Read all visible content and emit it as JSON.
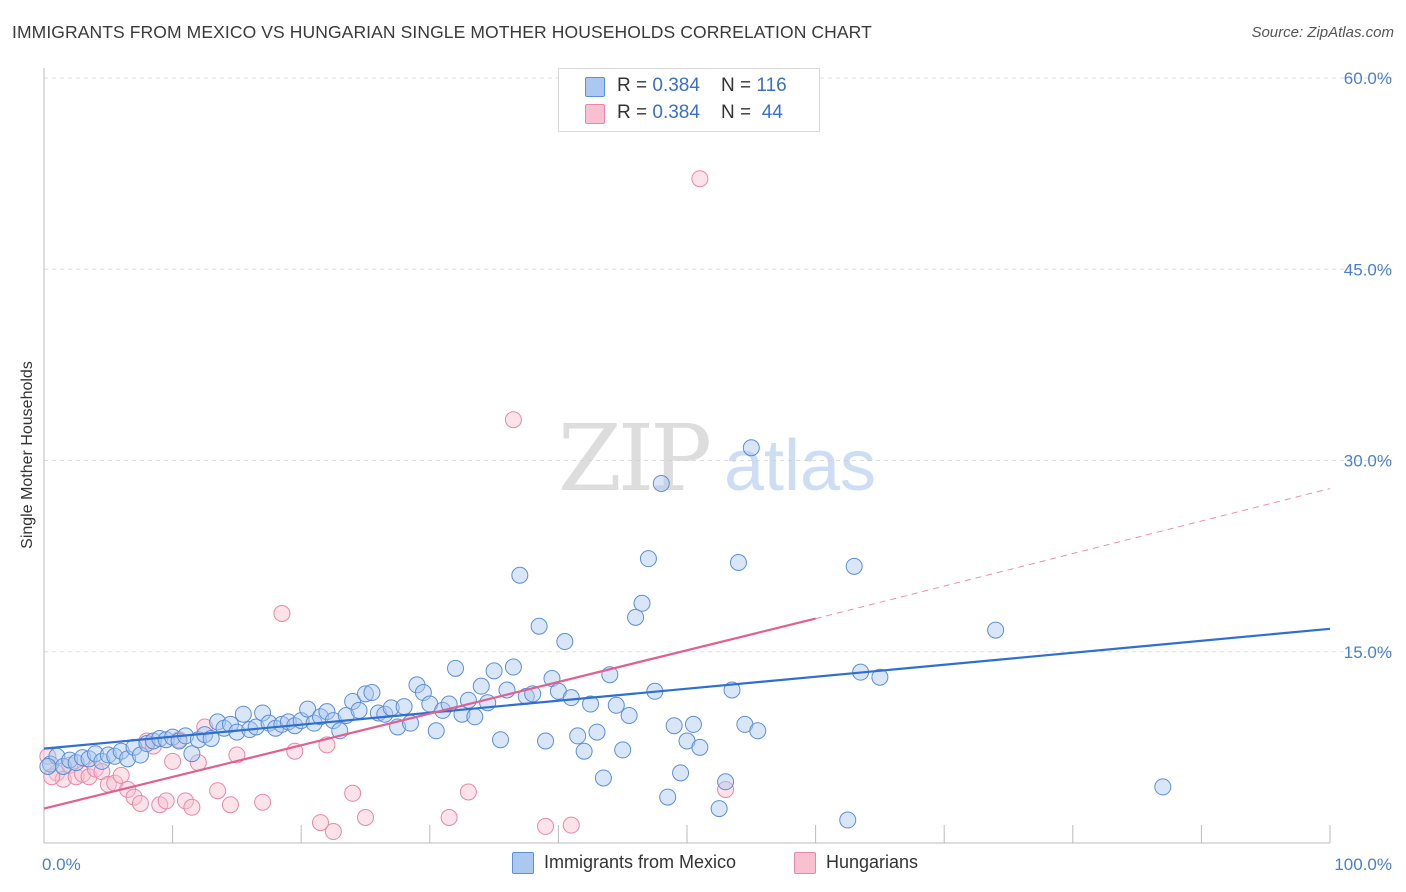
{
  "title": "IMMIGRANTS FROM MEXICO VS HUNGARIAN SINGLE MOTHER HOUSEHOLDS CORRELATION CHART",
  "source": "Source: ZipAtlas.com",
  "watermark": {
    "zip": "ZIP",
    "atlas": "atlas"
  },
  "legend": {
    "rows": [
      {
        "r_label": "R = ",
        "r_value": "0.384",
        "n_label": "N = ",
        "n_value": "116"
      },
      {
        "r_label": "R = ",
        "r_value": "0.384",
        "n_label": "N = ",
        "n_value": " 44"
      }
    ]
  },
  "colors": {
    "mexico_fill": "#aac8f0",
    "mexico_stroke": "#5b8fd8",
    "mexico_line": "#2f6fd0",
    "hungarian_fill": "#f8c0d0",
    "hungarian_stroke": "#e888a8",
    "hungarian_line": "#e06090",
    "grid": "#dddddd",
    "tick_label": "#4a7fd0"
  },
  "chart_data": {
    "type": "scatter",
    "title": "IMMIGRANTS FROM MEXICO VS HUNGARIAN SINGLE MOTHER HOUSEHOLDS CORRELATION CHART",
    "xlabel": "",
    "ylabel": "Single Mother Households",
    "xlim": [
      0,
      100
    ],
    "ylim": [
      0,
      60
    ],
    "x_ticks": [
      "0.0%",
      "100.0%"
    ],
    "y_ticks": [
      {
        "value": 15,
        "label": "15.0%"
      },
      {
        "value": 30,
        "label": "30.0%"
      },
      {
        "value": 45,
        "label": "45.0%"
      },
      {
        "value": 60,
        "label": "60.0%"
      }
    ],
    "grid": true,
    "legend_position": "top-center",
    "series": [
      {
        "name": "Immigrants from Mexico",
        "points": [
          [
            0.5,
            6.2
          ],
          [
            1.0,
            6.8
          ],
          [
            1.5,
            6.0
          ],
          [
            2.0,
            6.5
          ],
          [
            2.5,
            6.3
          ],
          [
            3.0,
            6.7
          ],
          [
            3.5,
            6.6
          ],
          [
            4.0,
            7.0
          ],
          [
            4.5,
            6.4
          ],
          [
            5.0,
            6.9
          ],
          [
            5.5,
            6.8
          ],
          [
            6.0,
            7.2
          ],
          [
            6.5,
            6.6
          ],
          [
            7.0,
            7.5
          ],
          [
            7.5,
            6.9
          ],
          [
            8.0,
            7.8
          ],
          [
            8.5,
            8.0
          ],
          [
            9.0,
            8.2
          ],
          [
            9.5,
            8.1
          ],
          [
            10.0,
            8.3
          ],
          [
            10.5,
            8.0
          ],
          [
            11.0,
            8.4
          ],
          [
            11.5,
            7.0
          ],
          [
            12.0,
            8.1
          ],
          [
            12.5,
            8.5
          ],
          [
            13.0,
            8.2
          ],
          [
            13.5,
            9.5
          ],
          [
            14.0,
            9.0
          ],
          [
            14.5,
            9.3
          ],
          [
            15.0,
            8.7
          ],
          [
            15.5,
            10.1
          ],
          [
            16.0,
            8.9
          ],
          [
            16.5,
            9.1
          ],
          [
            17.0,
            10.2
          ],
          [
            17.5,
            9.4
          ],
          [
            18.0,
            9.0
          ],
          [
            18.5,
            9.3
          ],
          [
            19.0,
            9.5
          ],
          [
            19.5,
            9.2
          ],
          [
            20.0,
            9.6
          ],
          [
            20.5,
            10.5
          ],
          [
            21.0,
            9.4
          ],
          [
            21.5,
            9.9
          ],
          [
            22.0,
            10.3
          ],
          [
            22.5,
            9.6
          ],
          [
            23.0,
            8.8
          ],
          [
            23.5,
            10.0
          ],
          [
            24.0,
            11.1
          ],
          [
            24.5,
            10.4
          ],
          [
            25.0,
            11.7
          ],
          [
            25.5,
            11.8
          ],
          [
            26.0,
            10.2
          ],
          [
            26.5,
            10.1
          ],
          [
            27.0,
            10.6
          ],
          [
            27.5,
            9.1
          ],
          [
            28.0,
            10.7
          ],
          [
            28.5,
            9.4
          ],
          [
            29.0,
            12.4
          ],
          [
            29.5,
            11.8
          ],
          [
            30.0,
            10.9
          ],
          [
            30.5,
            8.8
          ],
          [
            31.0,
            10.4
          ],
          [
            31.5,
            10.9
          ],
          [
            32.0,
            13.7
          ],
          [
            32.5,
            10.1
          ],
          [
            33.0,
            11.2
          ],
          [
            33.5,
            9.9
          ],
          [
            34.0,
            12.3
          ],
          [
            34.5,
            11.0
          ],
          [
            35.0,
            13.5
          ],
          [
            35.5,
            8.1
          ],
          [
            36.0,
            12.0
          ],
          [
            36.5,
            13.8
          ],
          [
            37.0,
            21.0
          ],
          [
            37.5,
            11.5
          ],
          [
            38.0,
            11.7
          ],
          [
            38.5,
            17.0
          ],
          [
            39.0,
            8.0
          ],
          [
            39.5,
            12.9
          ],
          [
            40.0,
            11.9
          ],
          [
            40.5,
            15.8
          ],
          [
            41.0,
            11.4
          ],
          [
            41.5,
            8.4
          ],
          [
            42.0,
            7.2
          ],
          [
            42.5,
            10.9
          ],
          [
            43.0,
            8.7
          ],
          [
            43.5,
            5.1
          ],
          [
            44.0,
            13.2
          ],
          [
            44.5,
            10.8
          ],
          [
            45.0,
            7.3
          ],
          [
            45.5,
            10.0
          ],
          [
            46.0,
            17.7
          ],
          [
            46.5,
            18.8
          ],
          [
            47.0,
            22.3
          ],
          [
            47.5,
            11.9
          ],
          [
            48.0,
            28.2
          ],
          [
            48.5,
            3.6
          ],
          [
            49.0,
            9.2
          ],
          [
            49.5,
            5.5
          ],
          [
            50.0,
            8.0
          ],
          [
            50.5,
            9.3
          ],
          [
            51.0,
            7.5
          ],
          [
            52.5,
            2.7
          ],
          [
            53.0,
            4.8
          ],
          [
            53.5,
            12.0
          ],
          [
            54.0,
            22.0
          ],
          [
            54.5,
            9.3
          ],
          [
            55.0,
            31.0
          ],
          [
            55.5,
            8.8
          ],
          [
            62.5,
            1.8
          ],
          [
            63.0,
            21.7
          ],
          [
            63.5,
            13.4
          ],
          [
            65.0,
            13.0
          ],
          [
            74.0,
            16.7
          ],
          [
            87.0,
            4.4
          ],
          [
            0.3,
            6.0
          ]
        ],
        "trend": {
          "x": [
            0,
            100
          ],
          "y": [
            7.4,
            16.8
          ]
        }
      },
      {
        "name": "Hungarians",
        "points": [
          [
            0.3,
            6.8
          ],
          [
            1.0,
            5.5
          ],
          [
            1.5,
            5.0
          ],
          [
            2.0,
            6.1
          ],
          [
            2.5,
            5.2
          ],
          [
            3.0,
            5.4
          ],
          [
            3.5,
            5.2
          ],
          [
            4.0,
            5.8
          ],
          [
            4.5,
            5.6
          ],
          [
            5.0,
            4.6
          ],
          [
            5.5,
            4.7
          ],
          [
            6.0,
            5.3
          ],
          [
            6.5,
            4.2
          ],
          [
            7.0,
            3.6
          ],
          [
            7.5,
            3.1
          ],
          [
            8.0,
            8.0
          ],
          [
            8.5,
            7.6
          ],
          [
            9.0,
            3.0
          ],
          [
            9.5,
            3.3
          ],
          [
            10.0,
            6.4
          ],
          [
            10.5,
            8.1
          ],
          [
            11.0,
            3.3
          ],
          [
            11.5,
            2.8
          ],
          [
            12.0,
            6.3
          ],
          [
            12.5,
            9.1
          ],
          [
            13.5,
            4.1
          ],
          [
            14.5,
            3.0
          ],
          [
            15.0,
            6.9
          ],
          [
            17.0,
            3.2
          ],
          [
            18.5,
            18.0
          ],
          [
            19.5,
            7.2
          ],
          [
            21.5,
            1.6
          ],
          [
            22.0,
            7.7
          ],
          [
            22.5,
            0.9
          ],
          [
            24.0,
            3.9
          ],
          [
            25.0,
            2.0
          ],
          [
            31.5,
            2.0
          ],
          [
            33.0,
            4.0
          ],
          [
            36.5,
            33.2
          ],
          [
            39.0,
            1.3
          ],
          [
            41.0,
            1.4
          ],
          [
            51.0,
            52.1
          ],
          [
            53.0,
            4.2
          ],
          [
            0.6,
            5.2
          ]
        ],
        "trend": {
          "x": [
            0,
            60
          ],
          "y": [
            2.7,
            17.6
          ]
        },
        "trend_extension": {
          "x": [
            60,
            100
          ],
          "y": [
            17.6,
            27.8
          ]
        }
      }
    ]
  },
  "bottom_legend": [
    {
      "label": "Immigrants from Mexico"
    },
    {
      "label": "Hungarians"
    }
  ]
}
